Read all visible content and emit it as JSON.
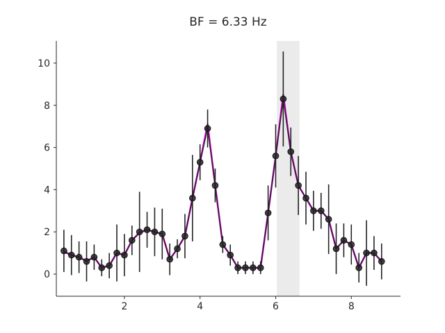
{
  "chart_data": {
    "type": "line",
    "title": "BF = 6.33 Hz",
    "xlabel": "",
    "ylabel": "",
    "xlim": [
      0.2,
      9.3
    ],
    "ylim": [
      -1.05,
      11.05
    ],
    "xticks": [
      2,
      4,
      6,
      8
    ],
    "yticks": [
      0,
      2,
      4,
      6,
      8,
      10
    ],
    "grid": false,
    "highlight_band": {
      "x_from": 6.03,
      "x_to": 6.63,
      "color": "#ebebeb"
    },
    "series": [
      {
        "role": "fit",
        "color": "#cc00cc",
        "x": [
          0.4,
          0.6,
          0.8,
          1.0,
          1.2,
          1.4,
          1.6,
          1.8,
          2.0,
          2.2,
          2.4,
          2.6,
          2.8,
          3.0,
          3.2,
          3.4,
          3.6,
          3.8,
          4.0,
          4.2,
          4.4,
          4.6,
          4.8,
          5.0,
          5.2,
          5.4,
          5.6,
          5.8,
          6.0,
          6.2,
          6.4,
          6.6,
          6.8,
          7.0,
          7.2,
          7.4,
          7.6,
          7.8,
          8.0,
          8.2,
          8.4,
          8.6,
          8.8
        ],
        "y": [
          1.05,
          0.9,
          0.8,
          0.62,
          0.8,
          0.3,
          0.4,
          1.0,
          0.9,
          1.6,
          1.95,
          2.1,
          2.0,
          1.9,
          0.7,
          1.2,
          1.8,
          3.6,
          5.3,
          7.1,
          4.2,
          1.4,
          0.9,
          0.3,
          0.3,
          0.3,
          0.3,
          2.9,
          5.6,
          8.5,
          5.8,
          4.2,
          3.6,
          3.0,
          3.0,
          2.6,
          1.2,
          1.6,
          1.4,
          0.3,
          1.0,
          1.0,
          0.6
        ]
      },
      {
        "role": "data",
        "color": "#222222",
        "x": [
          0.4,
          0.6,
          0.8,
          1.0,
          1.2,
          1.4,
          1.6,
          1.8,
          2.0,
          2.2,
          2.4,
          2.6,
          2.8,
          3.0,
          3.2,
          3.4,
          3.6,
          3.8,
          4.0,
          4.2,
          4.4,
          4.6,
          4.8,
          5.0,
          5.2,
          5.4,
          5.6,
          5.8,
          6.0,
          6.2,
          6.4,
          6.6,
          6.8,
          7.0,
          7.2,
          7.4,
          7.6,
          7.8,
          8.0,
          8.2,
          8.4,
          8.6,
          8.8
        ],
        "y": [
          1.1,
          0.9,
          0.8,
          0.6,
          0.8,
          0.3,
          0.4,
          1.0,
          0.9,
          1.6,
          2.0,
          2.1,
          2.0,
          1.9,
          0.7,
          1.2,
          1.8,
          3.6,
          5.3,
          6.9,
          4.2,
          1.4,
          0.9,
          0.3,
          0.3,
          0.3,
          0.3,
          2.9,
          5.6,
          8.3,
          5.8,
          4.2,
          3.6,
          3.0,
          3.0,
          2.6,
          1.2,
          1.6,
          1.4,
          0.3,
          1.0,
          1.0,
          0.6
        ],
        "err": [
          1.0,
          0.95,
          0.75,
          0.95,
          0.6,
          0.4,
          0.6,
          1.35,
          1.0,
          0.7,
          1.9,
          0.85,
          1.15,
          1.2,
          0.75,
          0.45,
          1.05,
          2.05,
          0.85,
          0.9,
          0.8,
          0.4,
          0.5,
          0.3,
          0.3,
          0.3,
          0.3,
          1.3,
          1.5,
          2.25,
          1.15,
          1.4,
          1.25,
          0.95,
          0.85,
          1.65,
          1.2,
          0.8,
          0.95,
          0.7,
          1.55,
          0.8,
          0.85
        ]
      }
    ]
  }
}
